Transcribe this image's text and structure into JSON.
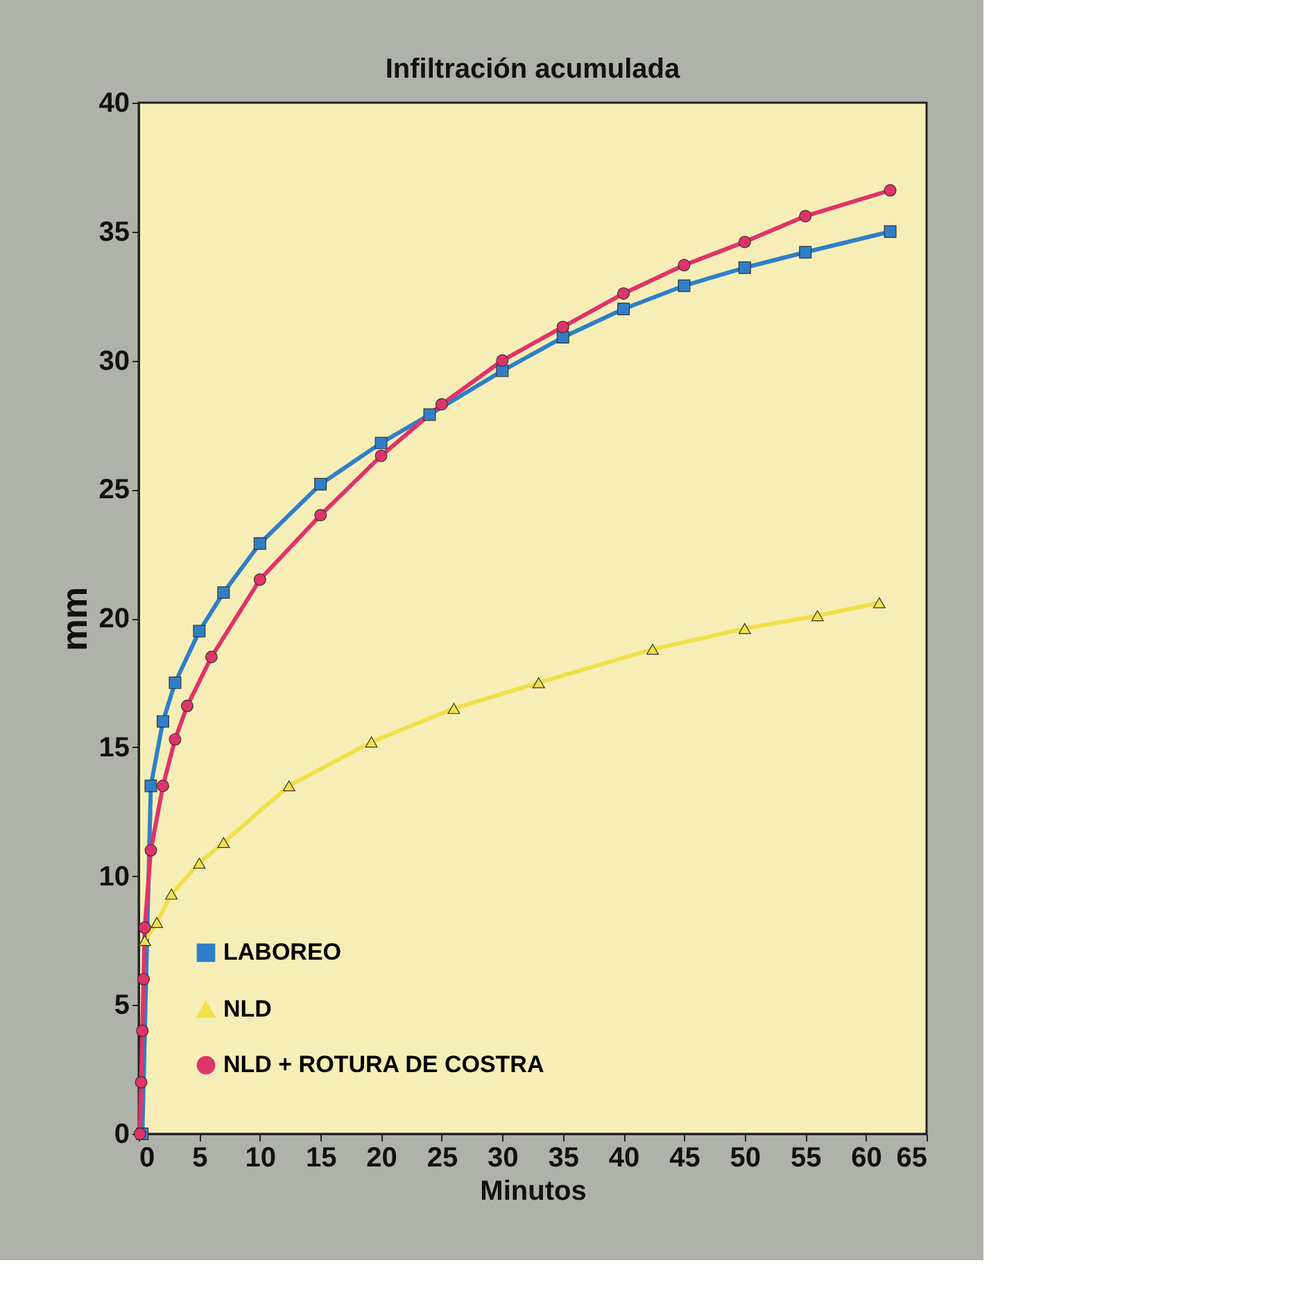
{
  "chart_data": {
    "type": "line",
    "title": "Infiltración acumulada",
    "xlabel": "Minutos",
    "ylabel": "mm",
    "xlim": [
      0,
      65
    ],
    "xticks": [
      0,
      5,
      10,
      15,
      20,
      25,
      30,
      35,
      40,
      45,
      50,
      55,
      60,
      65
    ],
    "ylim": [
      0,
      40
    ],
    "yticks": [
      0,
      5,
      10,
      15,
      20,
      25,
      30,
      35,
      40
    ],
    "grid": false,
    "legend": "bottom left",
    "line_style": "solid",
    "series": [
      {
        "name": "LABOREO",
        "color": "#2f7fc8",
        "marker": "square",
        "x": [
          0.3,
          1,
          2,
          3,
          5,
          7,
          10,
          15,
          20,
          24,
          30,
          35,
          40,
          45,
          50,
          55,
          62
        ],
        "values": [
          0,
          13.5,
          16,
          17.5,
          19.5,
          21,
          22.9,
          25.2,
          26.8,
          27.9,
          29.6,
          30.9,
          32,
          32.9,
          33.6,
          34.2,
          35
        ]
      },
      {
        "name": "NLD",
        "color": "#f0e04a",
        "marker": "triangle",
        "x": [
          0.5,
          1.5,
          2.7,
          5,
          7,
          12.4,
          19.2,
          26,
          33,
          42.4,
          50,
          56,
          61.1
        ],
        "values": [
          7.5,
          8.2,
          9.3,
          10.5,
          11.3,
          13.5,
          15.2,
          16.5,
          17.5,
          18.8,
          19.6,
          20.1,
          20.6
        ]
      },
      {
        "name": "NLD + ROTURA DE COSTRA",
        "color": "#e0336a",
        "marker": "circle",
        "x": [
          0.1,
          0.2,
          0.3,
          0.4,
          0.5,
          1,
          2,
          3,
          4,
          6,
          10,
          15,
          20,
          25,
          30,
          35,
          40,
          45,
          50,
          55,
          62
        ],
        "values": [
          0,
          2,
          4,
          6,
          8,
          11,
          13.5,
          15.3,
          16.6,
          18.5,
          21.5,
          24,
          26.3,
          28.3,
          30,
          31.3,
          32.6,
          33.7,
          34.6,
          35.6,
          36.6
        ]
      }
    ]
  }
}
